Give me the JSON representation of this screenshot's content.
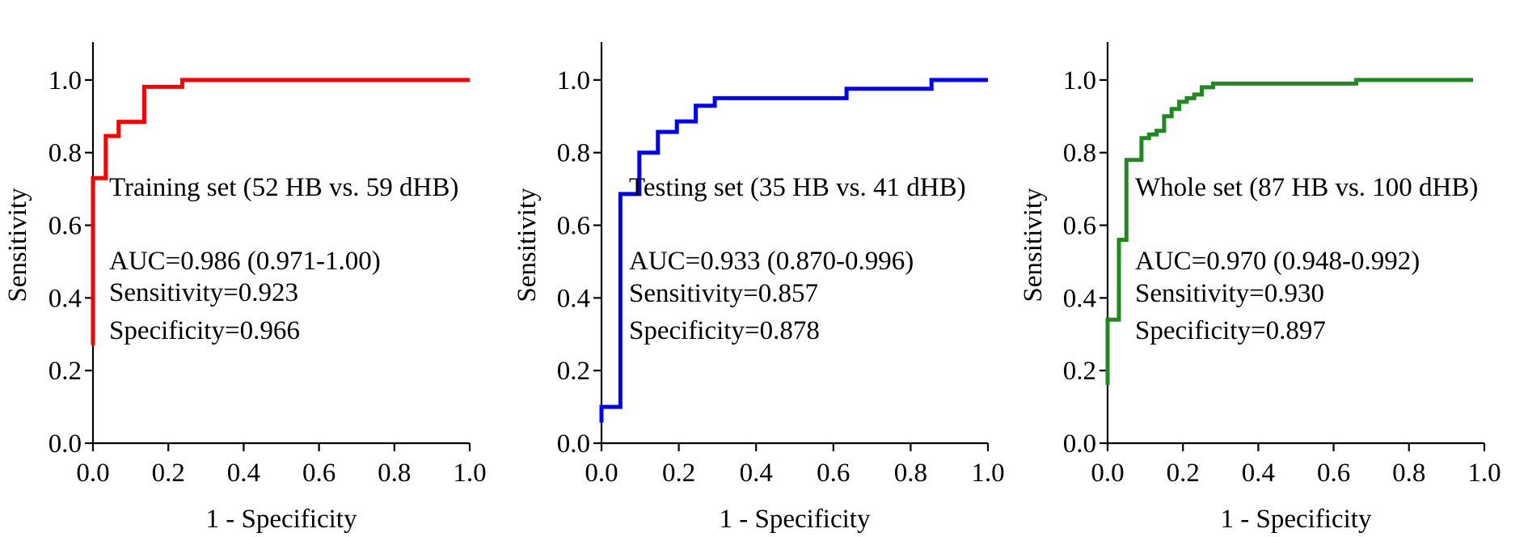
{
  "chart_data": [
    {
      "type": "line",
      "color": "#ff0000",
      "xlabel": "1 - Specificity",
      "ylabel": "Sensitivity",
      "xlim": [
        0,
        1.0
      ],
      "ylim": [
        0,
        1.1
      ],
      "xticks": [
        "0.0",
        "0.2",
        "0.4",
        "0.6",
        "0.8",
        "1.0"
      ],
      "yticks": [
        "0.0",
        "0.2",
        "0.4",
        "0.6",
        "0.8",
        "1.0"
      ],
      "annotations": [
        "Training set (52 HB vs. 59 dHB)",
        "AUC=0.986 (0.971-1.00)",
        "Sensitivity=0.923",
        "Specificity=0.966"
      ],
      "series": [
        {
          "x": [
            0,
            0,
            0.004,
            0.004,
            0.034,
            0.034,
            0.068,
            0.068,
            0.136,
            0.136,
            0.237,
            0.237,
            1.0
          ],
          "y": [
            0.27,
            0.73,
            0.73,
            0.73,
            0.73,
            0.846,
            0.846,
            0.885,
            0.885,
            0.981,
            0.981,
            1.0,
            1.0
          ]
        }
      ]
    },
    {
      "type": "line",
      "color": "#0000ff",
      "xlabel": "1 - Specificity",
      "ylabel": "Sensitivity",
      "xlim": [
        0,
        1.0
      ],
      "ylim": [
        0,
        1.1
      ],
      "xticks": [
        "0.0",
        "0.2",
        "0.4",
        "0.6",
        "0.8",
        "1.0"
      ],
      "yticks": [
        "0.0",
        "0.2",
        "0.4",
        "0.6",
        "0.8",
        "1.0"
      ],
      "annotations": [
        "Testing set (35 HB vs. 41 dHB)",
        "AUC=0.933 (0.870-0.996)",
        "Sensitivity=0.857",
        "Specificity=0.878"
      ],
      "series": [
        {
          "x": [
            0,
            0,
            0.049,
            0.049,
            0.098,
            0.098,
            0.146,
            0.146,
            0.195,
            0.195,
            0.244,
            0.244,
            0.293,
            0.293,
            0.634,
            0.634,
            0.854,
            0.854,
            1.0
          ],
          "y": [
            0.057,
            0.1,
            0.1,
            0.686,
            0.686,
            0.8,
            0.8,
            0.857,
            0.857,
            0.886,
            0.886,
            0.929,
            0.929,
            0.95,
            0.95,
            0.976,
            0.976,
            1.0,
            1.0
          ]
        }
      ]
    },
    {
      "type": "line",
      "color": "#1e8a1e",
      "xlabel": "1 - Specificity",
      "ylabel": "Sensitivity",
      "xlim": [
        0,
        1.0
      ],
      "ylim": [
        0,
        1.1
      ],
      "xticks": [
        "0.0",
        "0.2",
        "0.4",
        "0.6",
        "0.8",
        "1.0"
      ],
      "yticks": [
        "0.0",
        "0.2",
        "0.4",
        "0.6",
        "0.8",
        "1.0"
      ],
      "annotations": [
        "Whole set (87 HB vs. 100 dHB)",
        "AUC=0.970 (0.948-0.992)",
        "Sensitivity=0.930",
        "Specificity=0.897"
      ],
      "series": [
        {
          "x": [
            0,
            0,
            0.01,
            0.01,
            0.03,
            0.03,
            0.05,
            0.05,
            0.09,
            0.09,
            0.11,
            0.11,
            0.13,
            0.13,
            0.15,
            0.15,
            0.17,
            0.17,
            0.19,
            0.19,
            0.21,
            0.21,
            0.23,
            0.23,
            0.25,
            0.25,
            0.28,
            0.28,
            0.41,
            0.41,
            0.66,
            0.66,
            0.97
          ],
          "y": [
            0.16,
            0.34,
            0.34,
            0.34,
            0.34,
            0.56,
            0.56,
            0.78,
            0.78,
            0.84,
            0.84,
            0.85,
            0.85,
            0.86,
            0.86,
            0.9,
            0.9,
            0.92,
            0.92,
            0.94,
            0.94,
            0.95,
            0.95,
            0.96,
            0.96,
            0.98,
            0.98,
            0.99,
            0.99,
            0.99,
            0.99,
            1.0,
            1.0
          ]
        }
      ]
    }
  ]
}
